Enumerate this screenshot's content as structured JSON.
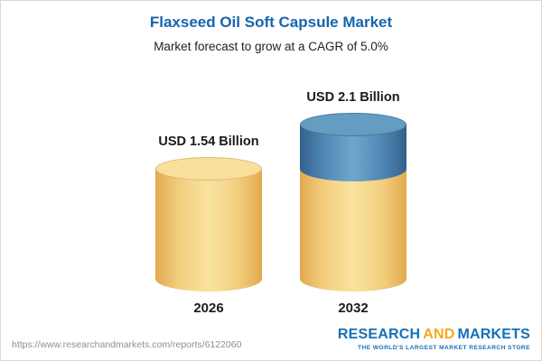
{
  "chart_data": {
    "type": "bar",
    "title": "Flaxseed Oil Soft Capsule Market",
    "subtitle": "Market forecast to grow at a CAGR of 5.0%",
    "categories": [
      "2026",
      "2032"
    ],
    "values": [
      1.54,
      2.1
    ],
    "value_labels": [
      "USD 1.54 Billion",
      "USD 2.1 Billion"
    ],
    "unit": "USD Billion",
    "cagr_pct": 5.0,
    "legend": "none",
    "bar_2032_segments": {
      "base_2026_value": 1.54,
      "growth_value": 0.56
    },
    "colors": {
      "bar_yellow": "#f2ce7e",
      "bar_blue_top": "#4f87b4",
      "title_blue": "#1565af"
    }
  },
  "footer": {
    "url": "https://www.researchandmarkets.com/reports/6122060",
    "logo": {
      "part1": "RESEARCH",
      "part2": "AND",
      "part3": "MARKETS"
    },
    "tagline": "THE WORLD'S LARGEST MARKET RESEARCH STORE"
  }
}
